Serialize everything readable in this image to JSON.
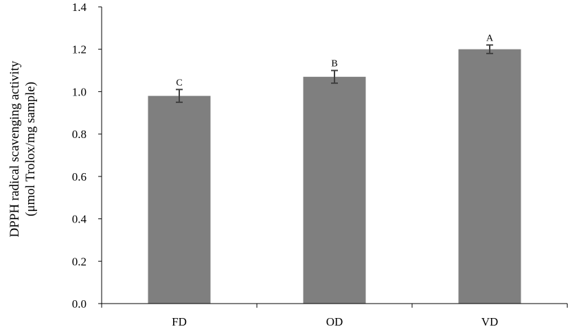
{
  "chart_data": {
    "type": "bar",
    "title": "",
    "xlabel": "",
    "ylabel_lines": [
      "DPPH radical scavenging  activity",
      "(μmol Trolox/mg sample)"
    ],
    "categories": [
      "FD",
      "OD",
      "VD"
    ],
    "values": [
      0.98,
      1.07,
      1.2
    ],
    "errors": [
      0.03,
      0.03,
      0.02
    ],
    "significance_labels": [
      "C",
      "B",
      "A"
    ],
    "ylim": [
      0,
      1.4
    ],
    "yticks": [
      0.0,
      0.2,
      0.4,
      0.6,
      0.8,
      1.0,
      1.2,
      1.4
    ],
    "ytick_labels": [
      "0.0",
      "0.2",
      "0.4",
      "0.6",
      "0.8",
      "1.0",
      "1.2",
      "1.4"
    ],
    "grid": false,
    "legend": "none",
    "bar_color": "#7f7f7f",
    "error_bar_color": "#404040",
    "axis_color": "#000000"
  }
}
